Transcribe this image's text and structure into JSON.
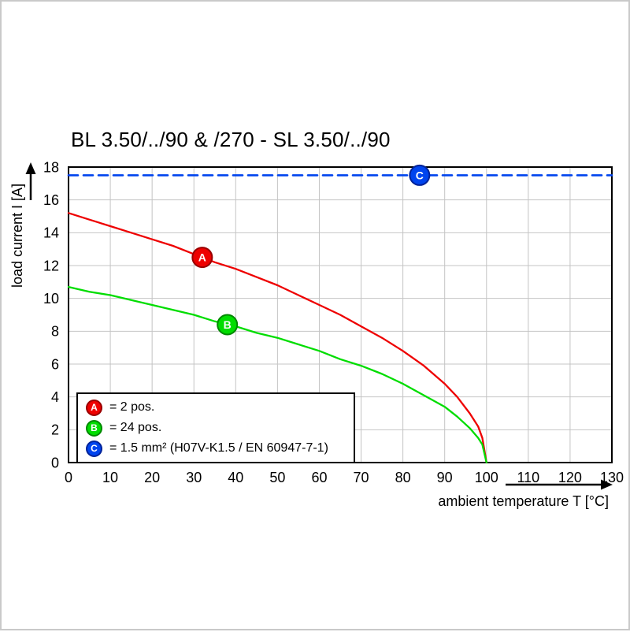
{
  "chart_data": {
    "type": "line",
    "title": "BL 3.50/../90 & /270 - SL 3.50/../90",
    "xlabel": "ambient temperature T [°C]",
    "ylabel": "load current I [A]",
    "xlim": [
      0,
      130
    ],
    "ylim": [
      0,
      18
    ],
    "xticks": [
      0,
      10,
      20,
      30,
      40,
      50,
      60,
      70,
      80,
      90,
      100,
      110,
      120,
      130
    ],
    "yticks": [
      0,
      2,
      4,
      6,
      8,
      10,
      12,
      14,
      16,
      18
    ],
    "grid": true,
    "legend_position": "bottom-left-inside",
    "colors": {
      "grid": "#c4c4c4",
      "axis": "#000000",
      "background": "#ffffff"
    },
    "series": [
      {
        "name": "A",
        "legend_label": "= 2 pos.",
        "color": "#ee0000",
        "ring_color": "#990000",
        "line_style": "solid",
        "marker_at": [
          32,
          12.5
        ],
        "points": [
          [
            0,
            15.2
          ],
          [
            5,
            14.8
          ],
          [
            10,
            14.4
          ],
          [
            15,
            14.0
          ],
          [
            20,
            13.6
          ],
          [
            25,
            13.2
          ],
          [
            30,
            12.7
          ],
          [
            35,
            12.2
          ],
          [
            40,
            11.8
          ],
          [
            45,
            11.3
          ],
          [
            50,
            10.8
          ],
          [
            55,
            10.2
          ],
          [
            60,
            9.6
          ],
          [
            65,
            9.0
          ],
          [
            70,
            8.3
          ],
          [
            75,
            7.6
          ],
          [
            80,
            6.8
          ],
          [
            85,
            5.9
          ],
          [
            90,
            4.8
          ],
          [
            93,
            4.0
          ],
          [
            96,
            3.0
          ],
          [
            98,
            2.2
          ],
          [
            99,
            1.5
          ],
          [
            100,
            0
          ]
        ]
      },
      {
        "name": "B",
        "legend_label": "= 24 pos.",
        "color": "#00dd00",
        "ring_color": "#008800",
        "line_style": "solid",
        "marker_at": [
          38,
          8.4
        ],
        "points": [
          [
            0,
            10.7
          ],
          [
            5,
            10.4
          ],
          [
            10,
            10.2
          ],
          [
            15,
            9.9
          ],
          [
            20,
            9.6
          ],
          [
            25,
            9.3
          ],
          [
            30,
            9.0
          ],
          [
            35,
            8.6
          ],
          [
            40,
            8.3
          ],
          [
            45,
            7.9
          ],
          [
            50,
            7.6
          ],
          [
            55,
            7.2
          ],
          [
            60,
            6.8
          ],
          [
            65,
            6.3
          ],
          [
            70,
            5.9
          ],
          [
            75,
            5.4
          ],
          [
            80,
            4.8
          ],
          [
            85,
            4.1
          ],
          [
            90,
            3.4
          ],
          [
            93,
            2.8
          ],
          [
            96,
            2.1
          ],
          [
            98,
            1.5
          ],
          [
            99,
            1.1
          ],
          [
            100,
            0
          ]
        ]
      },
      {
        "name": "C",
        "legend_label": "= 1.5 mm² (H07V-K1.5 / EN 60947-7-1)",
        "color": "#0044ee",
        "ring_color": "#002299",
        "line_style": "dashed",
        "marker_at": [
          84,
          17.5
        ],
        "points": [
          [
            0,
            17.5
          ],
          [
            130,
            17.5
          ]
        ]
      }
    ]
  }
}
